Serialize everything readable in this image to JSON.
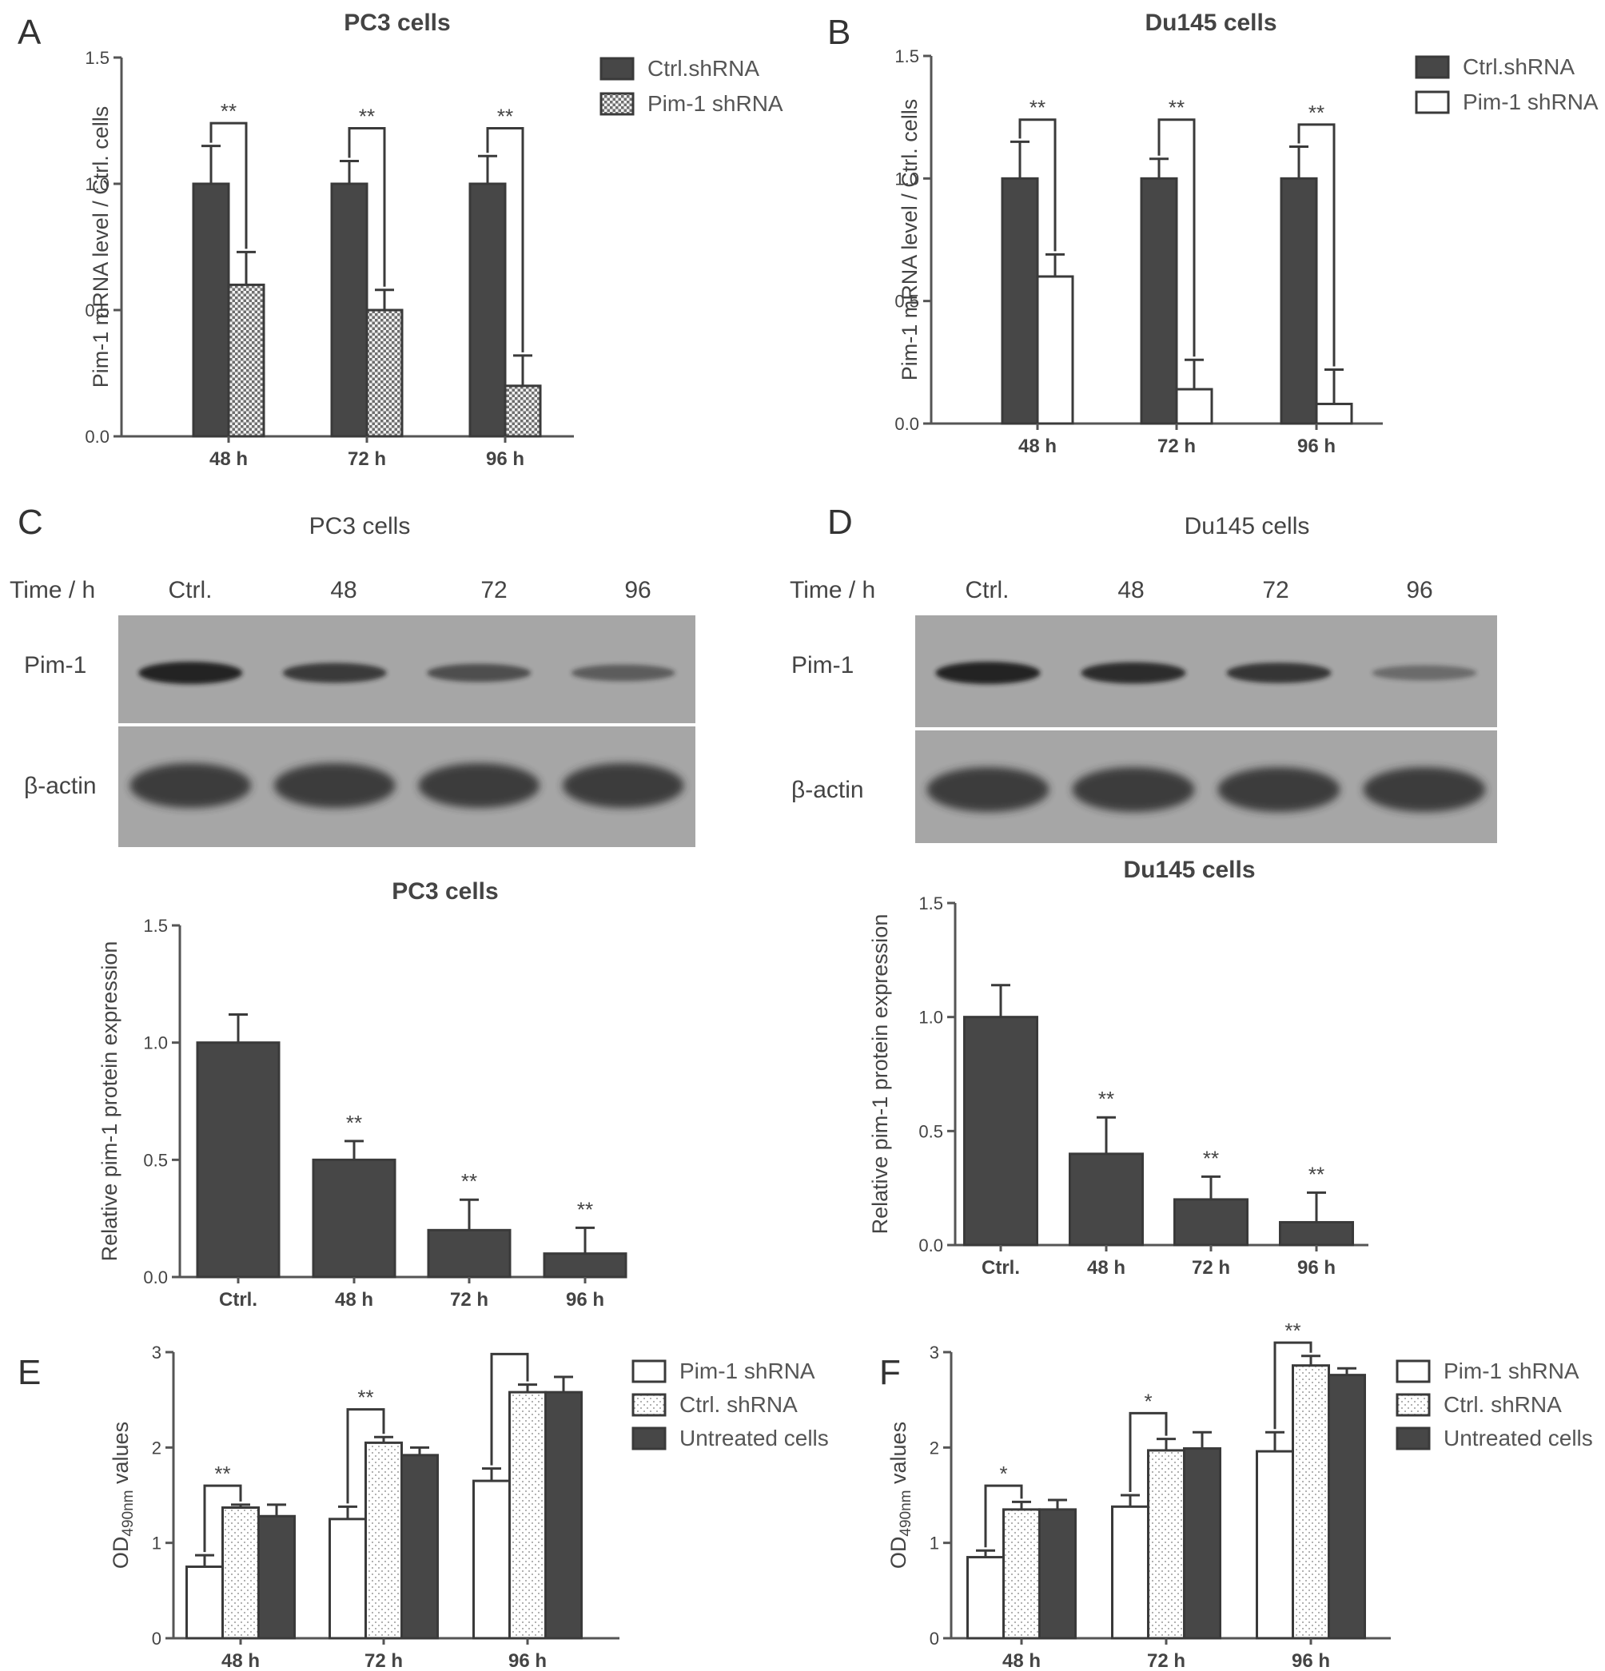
{
  "panels": {
    "A": "A",
    "B": "B",
    "C": "C",
    "D": "D",
    "E": "E",
    "F": "F"
  },
  "colors": {
    "dark": "#474747",
    "blot_bg": "#a6a6a6"
  },
  "chart_data": [
    {
      "id": "A",
      "type": "bar",
      "title": "PC3 cells",
      "xlabel": "",
      "ylabel": "Pim-1 mRNA level  / Ctrl. cells",
      "categories": [
        "48 h",
        "72 h",
        "96 h"
      ],
      "ylim": [
        0,
        1.5
      ],
      "yticks": [
        "0.0",
        "0.5",
        "1.0",
        "1.5"
      ],
      "ytick_values": [
        0,
        0.5,
        1.0,
        1.5
      ],
      "series": [
        {
          "name": "Ctrl.shRNA",
          "values": [
            1.0,
            1.0,
            1.0
          ],
          "errors": [
            0.15,
            0.09,
            0.11
          ],
          "fill": "dark"
        },
        {
          "name": "Pim-1 shRNA",
          "values": [
            0.6,
            0.5,
            0.2
          ],
          "errors": [
            0.13,
            0.08,
            0.12
          ],
          "fill": "check"
        }
      ],
      "brackets": [
        {
          "category": 0,
          "from": 0,
          "to": 1,
          "label": "**",
          "y": 1.24
        },
        {
          "category": 1,
          "from": 0,
          "to": 1,
          "label": "**",
          "y": 1.22
        },
        {
          "category": 2,
          "from": 0,
          "to": 1,
          "label": "**",
          "y": 1.22
        }
      ],
      "legend": "top-right"
    },
    {
      "id": "B",
      "type": "bar",
      "title": "Du145 cells",
      "xlabel": "",
      "ylabel": "Pim-1 mRNA level  / Ctrl. cells",
      "categories": [
        "48 h",
        "72 h",
        "96 h"
      ],
      "ylim": [
        0,
        1.5
      ],
      "yticks": [
        "0.0",
        "0.5",
        "1.0",
        "1.5"
      ],
      "ytick_values": [
        0,
        0.5,
        1.0,
        1.5
      ],
      "series": [
        {
          "name": "Ctrl.shRNA",
          "values": [
            1.0,
            1.0,
            1.0
          ],
          "errors": [
            0.15,
            0.08,
            0.13
          ],
          "fill": "dark"
        },
        {
          "name": "Pim-1 shRNA",
          "values": [
            0.6,
            0.14,
            0.08
          ],
          "errors": [
            0.09,
            0.12,
            0.14
          ],
          "fill": "white"
        }
      ],
      "brackets": [
        {
          "category": 0,
          "from": 0,
          "to": 1,
          "label": "**",
          "y": 1.24
        },
        {
          "category": 1,
          "from": 0,
          "to": 1,
          "label": "**",
          "y": 1.24
        },
        {
          "category": 2,
          "from": 0,
          "to": 1,
          "label": "**",
          "y": 1.22
        }
      ],
      "legend": "top-right"
    },
    {
      "id": "C",
      "type": "bar",
      "title": "PC3 cells",
      "xlabel": "",
      "ylabel": "Relative pim-1 protein expression",
      "categories": [
        "Ctrl.",
        "48 h",
        "72 h",
        "96 h"
      ],
      "ylim": [
        0,
        1.5
      ],
      "yticks": [
        "0.0",
        "0.5",
        "1.0",
        "1.5"
      ],
      "ytick_values": [
        0,
        0.5,
        1.0,
        1.5
      ],
      "series": [
        {
          "name": "",
          "values": [
            1.0,
            0.5,
            0.2,
            0.1
          ],
          "errors": [
            0.12,
            0.08,
            0.13,
            0.11
          ],
          "fill": "dark"
        }
      ],
      "annotations": [
        "",
        "**",
        "**",
        "**"
      ]
    },
    {
      "id": "D",
      "type": "bar",
      "title": "Du145 cells",
      "xlabel": "",
      "ylabel": "Relative pim-1 protein expression",
      "categories": [
        "Ctrl.",
        "48 h",
        "72 h",
        "96 h"
      ],
      "ylim": [
        0,
        1.5
      ],
      "yticks": [
        "0.0",
        "0.5",
        "1.0",
        "1.5"
      ],
      "ytick_values": [
        0,
        0.5,
        1.0,
        1.5
      ],
      "series": [
        {
          "name": "",
          "values": [
            1.0,
            0.4,
            0.2,
            0.1
          ],
          "errors": [
            0.14,
            0.16,
            0.1,
            0.13
          ],
          "fill": "dark"
        }
      ],
      "annotations": [
        "",
        "**",
        "**",
        "**"
      ]
    },
    {
      "id": "E",
      "type": "bar",
      "title": "",
      "xlabel": "",
      "ylabel_main": "OD",
      "ylabel_sub": "490nm",
      "ylabel_rest": " values",
      "categories": [
        "48 h",
        "72 h",
        "96 h"
      ],
      "ylim": [
        0,
        3
      ],
      "yticks": [
        "0",
        "1",
        "2",
        "3"
      ],
      "ytick_values": [
        0,
        1,
        2,
        3
      ],
      "series": [
        {
          "name": "Pim-1 shRNA",
          "values": [
            0.75,
            1.25,
            1.65
          ],
          "errors": [
            0.12,
            0.13,
            0.13
          ],
          "fill": "white"
        },
        {
          "name": "Ctrl. shRNA",
          "values": [
            1.37,
            2.05,
            2.58
          ],
          "errors": [
            0.03,
            0.06,
            0.08
          ],
          "fill": "dots"
        },
        {
          "name": "Untreated cells",
          "values": [
            1.28,
            1.92,
            2.58
          ],
          "errors": [
            0.12,
            0.08,
            0.16
          ],
          "fill": "dark"
        }
      ],
      "brackets": [
        {
          "category": 0,
          "from": 0,
          "to": 1,
          "label": "**",
          "y": 1.6
        },
        {
          "category": 1,
          "from": 0,
          "to": 1,
          "label": "**",
          "y": 2.4
        },
        {
          "category": 2,
          "from": 0,
          "to": 1,
          "label": "",
          "y": 2.98
        }
      ],
      "legend": "top-right"
    },
    {
      "id": "F",
      "type": "bar",
      "title": "",
      "xlabel": "",
      "ylabel_main": "OD",
      "ylabel_sub": "490nm",
      "ylabel_rest": " values",
      "categories": [
        "48 h",
        "72 h",
        "96 h"
      ],
      "ylim": [
        0,
        3
      ],
      "yticks": [
        "0",
        "1",
        "2",
        "3"
      ],
      "ytick_values": [
        0,
        1,
        2,
        3
      ],
      "series": [
        {
          "name": "Pim-1 shRNA",
          "values": [
            0.85,
            1.38,
            1.96
          ],
          "errors": [
            0.07,
            0.12,
            0.2
          ],
          "fill": "white"
        },
        {
          "name": "Ctrl. shRNA",
          "values": [
            1.35,
            1.97,
            2.86
          ],
          "errors": [
            0.08,
            0.12,
            0.1
          ],
          "fill": "dots"
        },
        {
          "name": "Untreated cells",
          "values": [
            1.35,
            1.99,
            2.76
          ],
          "errors": [
            0.1,
            0.17,
            0.07
          ],
          "fill": "dark"
        }
      ],
      "brackets": [
        {
          "category": 0,
          "from": 0,
          "to": 1,
          "label": "*",
          "y": 1.6
        },
        {
          "category": 1,
          "from": 0,
          "to": 1,
          "label": "*",
          "y": 2.36
        },
        {
          "category": 2,
          "from": 0,
          "to": 1,
          "label": "**",
          "y": 3.1
        }
      ],
      "legend": "top-right"
    }
  ],
  "blots": [
    {
      "id": "C",
      "title": "PC3 cells",
      "time_label": "Time / h",
      "lanes": [
        "Ctrl.",
        "48",
        "72",
        "96"
      ],
      "rows": [
        "Pim-1",
        "β-actin"
      ],
      "pim1_intensity": [
        1.0,
        0.75,
        0.55,
        0.4
      ],
      "actin_intensity": [
        1.0,
        1.0,
        1.0,
        1.0
      ]
    },
    {
      "id": "D",
      "title": "Du145 cells",
      "time_label": "Time / h",
      "lanes": [
        "Ctrl.",
        "48",
        "72",
        "96"
      ],
      "rows": [
        "Pim-1",
        "β-actin"
      ],
      "pim1_intensity": [
        1.0,
        0.9,
        0.8,
        0.25
      ],
      "actin_intensity": [
        1.0,
        1.0,
        1.0,
        1.0
      ]
    }
  ]
}
